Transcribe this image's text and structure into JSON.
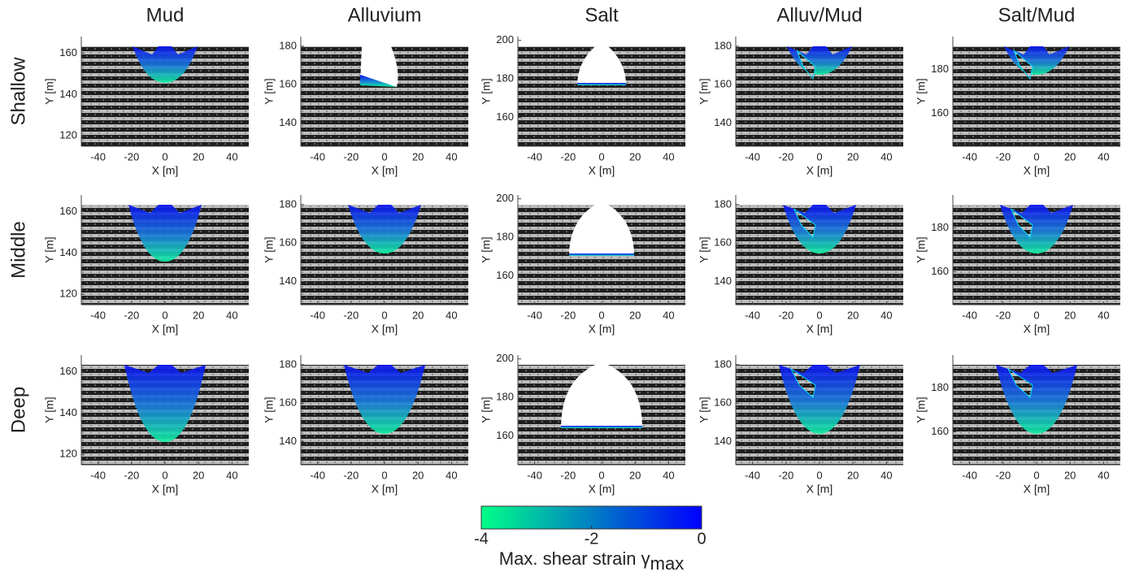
{
  "columns": [
    "Mud",
    "Alluvium",
    "Salt",
    "Alluv/Mud",
    "Salt/Mud"
  ],
  "x_label": "X [m]",
  "y_label": "Y [m]",
  "xlim": [
    -50,
    50
  ],
  "xticks": [
    -40,
    -20,
    0,
    20,
    40
  ],
  "rows": [
    {
      "label": "Shallow",
      "panels": [
        {
          "ylim": [
            115,
            168
          ],
          "yticks": [
            120,
            140,
            160
          ]
        },
        {
          "ylim": [
            128,
            185
          ],
          "yticks": [
            140,
            160,
            180
          ]
        },
        {
          "ylim": [
            145,
            202
          ],
          "yticks": [
            160,
            180,
            200
          ]
        },
        {
          "ylim": [
            128,
            185
          ],
          "yticks": [
            140,
            160,
            180
          ]
        },
        {
          "ylim": [
            145,
            195
          ],
          "yticks": [
            160,
            180
          ]
        }
      ]
    },
    {
      "label": "Middle",
      "panels": [
        {
          "ylim": [
            115,
            168
          ],
          "yticks": [
            120,
            140,
            160
          ]
        },
        {
          "ylim": [
            128,
            185
          ],
          "yticks": [
            140,
            160,
            180
          ]
        },
        {
          "ylim": [
            145,
            202
          ],
          "yticks": [
            160,
            180,
            200
          ]
        },
        {
          "ylim": [
            128,
            185
          ],
          "yticks": [
            140,
            160,
            180
          ]
        },
        {
          "ylim": [
            145,
            195
          ],
          "yticks": [
            160,
            180
          ]
        }
      ]
    },
    {
      "label": "Deep",
      "panels": [
        {
          "ylim": [
            115,
            168
          ],
          "yticks": [
            120,
            140,
            160
          ]
        },
        {
          "ylim": [
            128,
            185
          ],
          "yticks": [
            140,
            160,
            180
          ]
        },
        {
          "ylim": [
            145,
            202
          ],
          "yticks": [
            160,
            180,
            200
          ]
        },
        {
          "ylim": [
            128,
            185
          ],
          "yticks": [
            140,
            160,
            180
          ]
        },
        {
          "ylim": [
            145,
            195
          ],
          "yticks": [
            160,
            180
          ]
        }
      ]
    }
  ],
  "colorbar": {
    "label": "Max. shear strain γ",
    "label_subscript": "max",
    "lim": [
      -4,
      0
    ],
    "ticks": [
      -4,
      -2,
      0
    ],
    "colors": [
      "#00ff88",
      "#0000ff"
    ]
  }
}
